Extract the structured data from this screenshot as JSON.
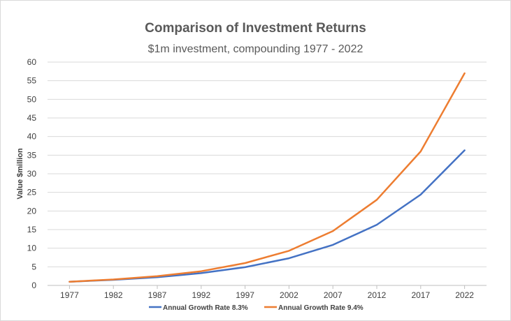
{
  "chart_data": {
    "type": "line",
    "title": "Comparison of Investment Returns",
    "subtitle": "$1m investment, compounding 1977 - 2022",
    "xlabel": "",
    "ylabel": "Value $million",
    "ylim": [
      0,
      60
    ],
    "yticks": [
      0,
      5,
      10,
      15,
      20,
      25,
      30,
      35,
      40,
      45,
      50,
      55,
      60
    ],
    "categories": [
      "1977",
      "1982",
      "1987",
      "1992",
      "1997",
      "2002",
      "2007",
      "2012",
      "2017",
      "2022"
    ],
    "grid": true,
    "legend_position": "bottom",
    "series": [
      {
        "name": "Annual Growth Rate 8.3%",
        "color": "#4472c4",
        "values": [
          1.0,
          1.5,
          2.2,
          3.3,
          4.9,
          7.3,
          10.9,
          16.3,
          24.4,
          36.3
        ]
      },
      {
        "name": "Annual Growth Rate 9.4%",
        "color": "#ed7d31",
        "values": [
          1.0,
          1.6,
          2.5,
          3.8,
          6.0,
          9.3,
          14.6,
          23.0,
          36.0,
          57.0
        ]
      }
    ]
  }
}
